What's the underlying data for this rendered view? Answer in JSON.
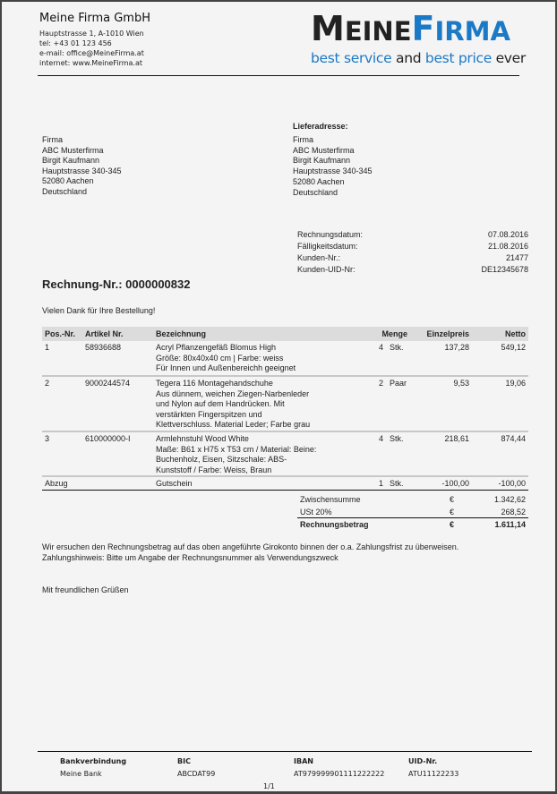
{
  "sender": {
    "name": "Meine Firma GmbH",
    "lines": [
      "Hauptstrasse 1, A-1010 Wien",
      "tel: +43 01 123 456",
      "e-mail: office@MeineFirma.at",
      "internet: www.MeineFirma.at"
    ]
  },
  "logo": {
    "word1": "MeineFirma",
    "tagline": "best service and best price ever",
    "accent": "#1b79c6"
  },
  "billing": {
    "lines": [
      "Firma",
      "ABC Musterfirma",
      "Birgit Kaufmann",
      "Hauptstrasse 340-345",
      "52080 Aachen",
      "Deutschland"
    ]
  },
  "delivery": {
    "title": "Lieferadresse:",
    "lines": [
      "Firma",
      "ABC Musterfirma",
      "Birgit Kaufmann",
      "Hauptstrasse 340-345",
      "52080 Aachen",
      "Deutschland"
    ]
  },
  "meta": [
    {
      "label": "Rechnungsdatum:",
      "value": "07.08.2016"
    },
    {
      "label": "Fälligkeitsdatum:",
      "value": "21.08.2016"
    },
    {
      "label": "Kunden-Nr.:",
      "value": "21477"
    },
    {
      "label": "Kunden-UID-Nr:",
      "value": "DE12345678"
    }
  ],
  "invoice_title": "Rechnung-Nr.: 0000000832",
  "thanks": "Vielen Dank für Ihre Bestellung!",
  "table": {
    "headers": [
      "Pos.-Nr.",
      "Artikel Nr.",
      "Bezeichnung",
      "Menge",
      "Einzelpreis",
      "Netto"
    ],
    "rows": [
      {
        "pos": "1",
        "art": "58936688",
        "desc": [
          "Acryl Pflanzengefäß Blomus High",
          "Größe: 80x40x40 cm | Farbe: weiss",
          "Für Innen und Außenbereichh geeignet"
        ],
        "qty": "4",
        "unit": "Stk.",
        "price": "137,28",
        "net": "549,12"
      },
      {
        "pos": "2",
        "art": "9000244574",
        "desc": [
          "Tegera 116 Montagehandschuhe",
          "Aus dünnem, weichen Ziegen-Narbenleder",
          "und Nylon auf dem Handrücken. Mit",
          "verstärkten Fingerspitzen und",
          "Klettverschluss. Material Leder; Farbe grau"
        ],
        "qty": "2",
        "unit": "Paar",
        "price": "9,53",
        "net": "19,06"
      },
      {
        "pos": "3",
        "art": "610000000-I",
        "desc": [
          "Armlehnstuhl Wood White",
          "Maße: B61 x H75 x T53 cm / Material: Beine:",
          "Buchenholz, Eisen, Sitzschale: ABS-",
          "Kunststoff / Farbe: Weiss, Braun"
        ],
        "qty": "4",
        "unit": "Stk.",
        "price": "218,61",
        "net": "874,44"
      },
      {
        "pos": "Abzug",
        "art": "",
        "desc": [
          "Gutschein"
        ],
        "qty": "1",
        "unit": "Stk.",
        "price": "-100,00",
        "net": "-100,00"
      }
    ]
  },
  "totals": [
    {
      "label": "Zwischensumme",
      "cur": "€",
      "value": "1.342,62"
    },
    {
      "label": "USt 20%",
      "cur": "€",
      "value": "268,52"
    },
    {
      "label": "Rechnungsbetrag",
      "cur": "€",
      "value": "1.611,14"
    }
  ],
  "closing": [
    "Wir ersuchen den Rechnungsbetrag auf das oben angeführte Girokonto binnen der o.a. Zahlungsfrist zu überweisen.",
    "Zahlungshinweis: Bitte um Angabe der Rechnungsnummer als Verwendungszweck"
  ],
  "greeting": "Mit freundlichen Grüßen",
  "footer": [
    {
      "label": "Bankverbindung",
      "value": "Meine Bank"
    },
    {
      "label": "BIC",
      "value": "ABCDAT99"
    },
    {
      "label": "IBAN",
      "value": "AT979999901111222222"
    },
    {
      "label": "UID-Nr.",
      "value": "ATU11122233"
    }
  ],
  "page": "1/1"
}
